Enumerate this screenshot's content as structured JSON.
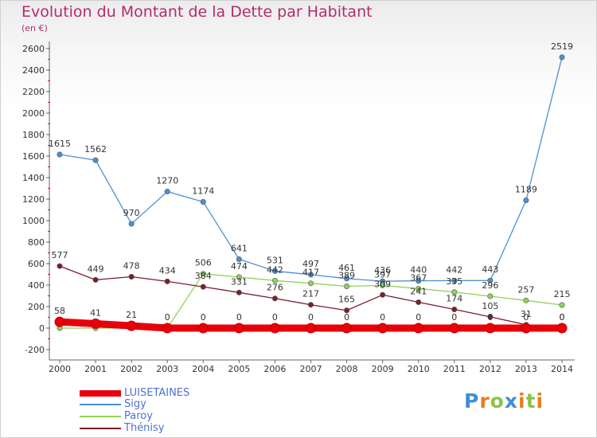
{
  "header": {
    "title": "Evolution du Montant de la Dette par Habitant",
    "subtitle": "(en €)"
  },
  "brand": {
    "letters": [
      "P",
      "r",
      "o",
      "x",
      "i",
      "t",
      "i"
    ],
    "colors": [
      "#3d8fd6",
      "#e87d1e",
      "#8bc34a",
      "#3d8fd6",
      "#e87d1e",
      "#8bc34a",
      "#e87d1e"
    ]
  },
  "chart_data": {
    "type": "line",
    "title": "Evolution du Montant de la Dette par Habitant",
    "subtitle": "(en €)",
    "xlabel": "",
    "ylabel": "",
    "ylim": [
      -200,
      2600
    ],
    "yticks": [
      -200,
      0,
      200,
      400,
      600,
      800,
      1000,
      1200,
      1400,
      1600,
      1800,
      2000,
      2200,
      2400,
      2600
    ],
    "grid": false,
    "legend_position": "bottom-left",
    "categories": [
      "2000",
      "2001",
      "2002",
      "2003",
      "2004",
      "2005",
      "2006",
      "2007",
      "2008",
      "2009",
      "2010",
      "2011",
      "2012",
      "2013",
      "2014"
    ],
    "series": [
      {
        "name": "LUISETAINES",
        "color": "#e8000b",
        "values": [
          58,
          41,
          21,
          0,
          0,
          0,
          0,
          0,
          0,
          0,
          0,
          0,
          0,
          0,
          0
        ],
        "labels": [
          "58",
          "41",
          "21",
          "0",
          "0",
          "0",
          "0",
          "0",
          "0",
          "0",
          "0",
          "0",
          "0",
          "0",
          "0"
        ]
      },
      {
        "name": "Sigy",
        "color": "#4a90d2",
        "values": [
          1615,
          1562,
          970,
          1270,
          1174,
          641,
          531,
          497,
          461,
          436,
          440,
          442,
          443,
          1189,
          2519
        ],
        "labels": [
          "1615",
          "1562",
          "970",
          "1270",
          "1174",
          "641",
          "531",
          "497",
          "461",
          "436",
          "440",
          "442",
          "443",
          "1189",
          "2519"
        ]
      },
      {
        "name": "Paroy",
        "color": "#8fd15a",
        "values": [
          0,
          0,
          0,
          0,
          506,
          474,
          442,
          417,
          389,
          397,
          367,
          335,
          296,
          257,
          215
        ],
        "labels": [
          "",
          "",
          "",
          "",
          "506",
          "474",
          "442",
          "417",
          "389",
          "397",
          "367",
          "335",
          "296",
          "257",
          "215"
        ]
      },
      {
        "name": "Thénisy",
        "color": "#7a1f2b",
        "values": [
          577,
          449,
          478,
          434,
          384,
          331,
          276,
          217,
          165,
          309,
          241,
          174,
          105,
          31,
          0
        ],
        "labels": [
          "577",
          "449",
          "478",
          "434",
          "384",
          "331",
          "276",
          "217",
          "165",
          "309",
          "241",
          "174",
          "105",
          "31",
          "0"
        ]
      }
    ]
  }
}
